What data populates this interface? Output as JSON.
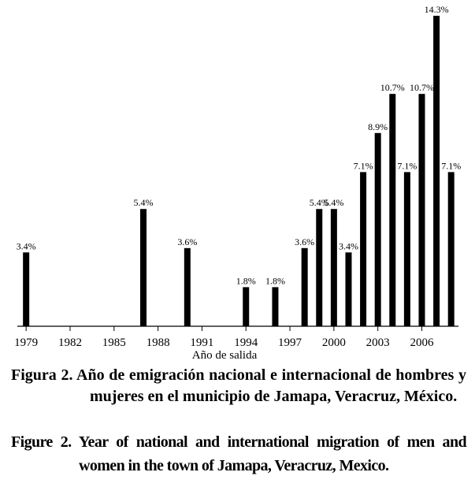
{
  "chart_data": {
    "type": "bar",
    "x_label": "Año de salida",
    "x": [
      1979,
      1987,
      1990,
      1994,
      1996,
      1998,
      1999,
      2000,
      2001,
      2002,
      2003,
      2004,
      2005,
      2006,
      2007,
      2008
    ],
    "values": [
      3.4,
      5.4,
      3.6,
      1.8,
      1.8,
      3.6,
      5.4,
      5.4,
      3.4,
      7.1,
      8.9,
      10.7,
      7.1,
      10.7,
      14.3,
      7.1
    ],
    "value_labels": [
      "3.4%",
      "5.4%",
      "3.6%",
      "1.8%",
      "1.8%",
      "3.6%",
      "5.4%",
      "5.4%",
      "3.4%",
      "7.1%",
      "8.9%",
      "10.7%",
      "7.1%",
      "10.7%",
      "14.3%",
      "7.1%"
    ],
    "color": "#000000",
    "xlim": [
      1978.4,
      2008.5
    ],
    "xticks": [
      1979,
      1982,
      1985,
      1988,
      1991,
      1994,
      1997,
      2000,
      2003,
      2006
    ],
    "ylim": [
      0,
      14.3
    ]
  },
  "caption_es": {
    "label": "Figura 2.",
    "text": "Año de emigración nacional e internacional de hombres y mujeres en el municipio de Jamapa, Veracruz, México."
  },
  "caption_en": {
    "label": "Figure 2.",
    "text": "Year of national and international migration of men and women in the town of Jamapa, Veracruz, Mexico."
  }
}
